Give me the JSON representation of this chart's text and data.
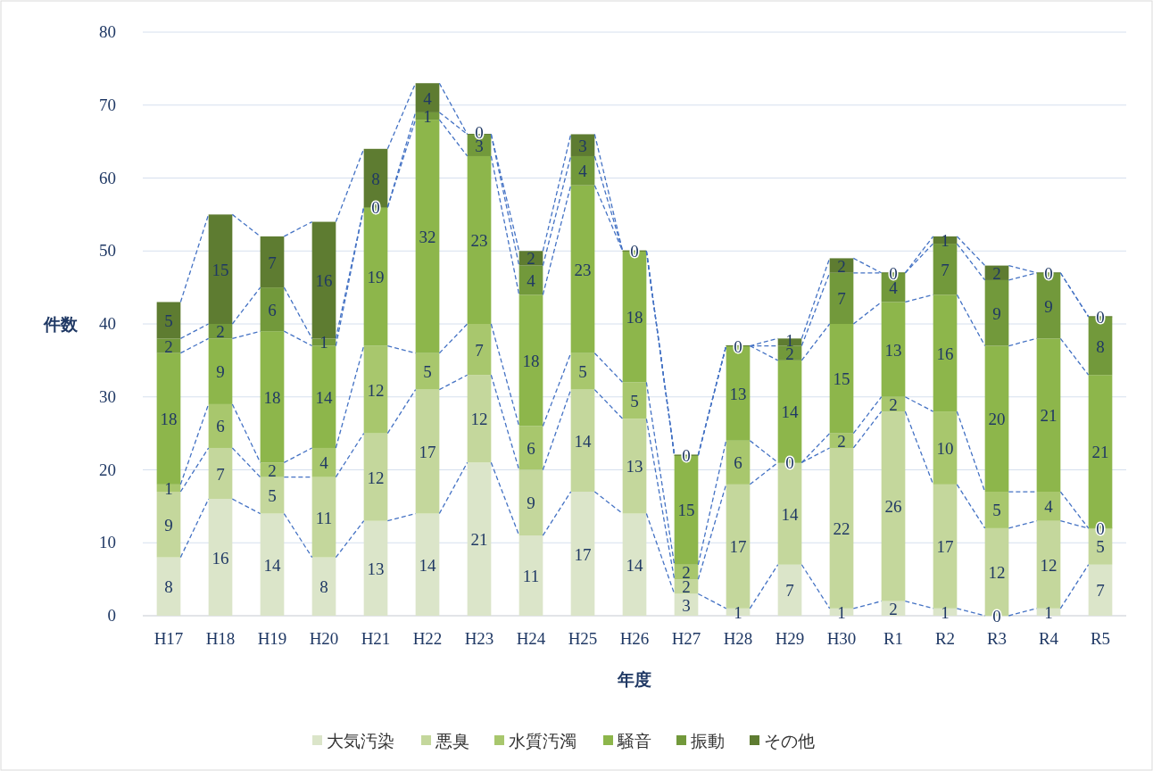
{
  "chart_data": {
    "type": "bar",
    "stacked": true,
    "xlabel": "年度",
    "ylabel": "件数",
    "categories": [
      "H17",
      "H18",
      "H19",
      "H20",
      "H21",
      "H22",
      "H23",
      "H24",
      "H25",
      "H26",
      "H27",
      "H28",
      "H29",
      "H30",
      "R1",
      "R2",
      "R3",
      "R4",
      "R5"
    ],
    "series": [
      {
        "name": "大気汚染",
        "color": "#dbe5c9",
        "values": [
          8,
          16,
          14,
          8,
          13,
          14,
          21,
          11,
          17,
          14,
          3,
          1,
          7,
          1,
          2,
          1,
          0,
          1,
          7
        ],
        "value_labels": [
          "8",
          "16",
          "14",
          "8",
          "13",
          "14",
          "21",
          "11",
          "17",
          "14",
          "3",
          "1",
          "7",
          "1",
          "2",
          "1",
          "0",
          "1",
          "7"
        ]
      },
      {
        "name": "悪臭",
        "color": "#c4d79c",
        "values": [
          9,
          7,
          5,
          11,
          12,
          17,
          12,
          9,
          14,
          13,
          2,
          17,
          14,
          22,
          26,
          17,
          12,
          12,
          5
        ],
        "value_labels": [
          "9",
          "7",
          "5",
          "11",
          "12",
          "17",
          "12",
          "9",
          "14",
          "13",
          "2",
          "17",
          "14",
          "22",
          "26",
          "17",
          "12",
          "12",
          "5"
        ]
      },
      {
        "name": "水質汚濁",
        "color": "#a8c76d",
        "values": [
          1,
          6,
          2,
          4,
          12,
          5,
          7,
          6,
          5,
          5,
          2,
          6,
          0,
          2,
          2,
          10,
          5,
          4,
          0
        ],
        "value_labels": [
          "1",
          "6",
          "2",
          "4",
          "12",
          "5",
          "7",
          "6",
          "5",
          "5",
          "2",
          "6",
          "0",
          "2",
          "2",
          "10",
          "5",
          "4",
          "0"
        ]
      },
      {
        "name": "騒音",
        "color": "#8db64b",
        "values": [
          18,
          9,
          18,
          14,
          19,
          32,
          23,
          18,
          23,
          18,
          15,
          13,
          14,
          15,
          13,
          16,
          20,
          21,
          21
        ],
        "value_labels": [
          "18",
          "9",
          "18",
          "14",
          "19",
          "32",
          "23",
          "18",
          "23",
          "18",
          "15",
          "13",
          "14",
          "15",
          "13",
          "16",
          "20",
          "21",
          "21"
        ]
      },
      {
        "name": "振動",
        "color": "#72993b",
        "values": [
          2,
          2,
          6,
          1,
          0,
          1,
          3,
          4,
          4,
          0,
          0,
          0,
          2,
          7,
          4,
          7,
          9,
          9,
          8
        ],
        "value_labels": [
          "2",
          "2",
          "6",
          "1",
          "0",
          "1",
          "3",
          "4",
          "4",
          null,
          null,
          null,
          "2",
          "7",
          "4",
          "7",
          "9",
          "9",
          "8"
        ]
      },
      {
        "name": "その他",
        "color": "#5e7c31",
        "values": [
          5,
          15,
          7,
          16,
          8,
          4,
          0,
          2,
          3,
          0,
          0,
          0,
          1,
          2,
          0,
          1,
          2,
          0,
          0
        ],
        "value_labels": [
          "5",
          "15",
          "7",
          "16",
          "8",
          "4",
          "0",
          "2",
          "3",
          "0",
          "0",
          "0",
          "1",
          "2",
          "0",
          "1",
          "2",
          "0",
          "0"
        ]
      }
    ],
    "ylim": [
      0,
      80
    ],
    "yticks": [
      0,
      10,
      20,
      30,
      40,
      50,
      60,
      70,
      80
    ],
    "grid": "y",
    "legend": "bottom"
  }
}
